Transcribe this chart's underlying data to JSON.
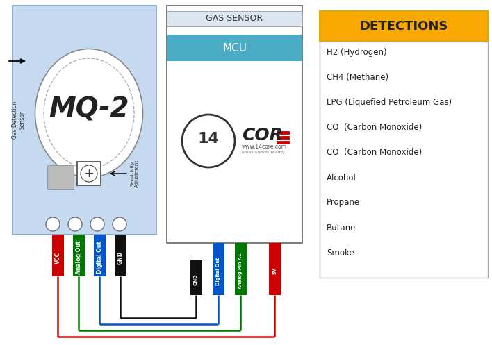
{
  "bg_color": "#ffffff",
  "sensor_bg": "#c5d9f1",
  "sensor_border": "#7f9db9",
  "mcu_header_bg": "#4bacc6",
  "gas_sensor_header_bg": "#dce6f1",
  "detections_header_bg": "#f9a800",
  "detections_border": "#aaaaaa",
  "sensor_pins": [
    {
      "label": "VCC",
      "color": "#cc0000"
    },
    {
      "label": "Analog Out",
      "color": "#007700"
    },
    {
      "label": "Digital Out",
      "color": "#0055cc"
    },
    {
      "label": "GND",
      "color": "#111111"
    }
  ],
  "mcu_pins": [
    {
      "label": "GND",
      "color": "#111111"
    },
    {
      "label": "Digital Out",
      "color": "#0055cc"
    },
    {
      "label": "Analog Pin A1",
      "color": "#007700"
    },
    {
      "label": "5V",
      "color": "#cc0000"
    }
  ],
  "detections": [
    "H2 (Hydrogen)",
    "CH4 (Methane)",
    "LPG (Liquefied Petroleum Gas)",
    "CO  (Carbon Monoxide)",
    "CO  (Carbon Monoxide)",
    "Alcohol",
    "Propane",
    "Butane",
    "Smoke"
  ]
}
